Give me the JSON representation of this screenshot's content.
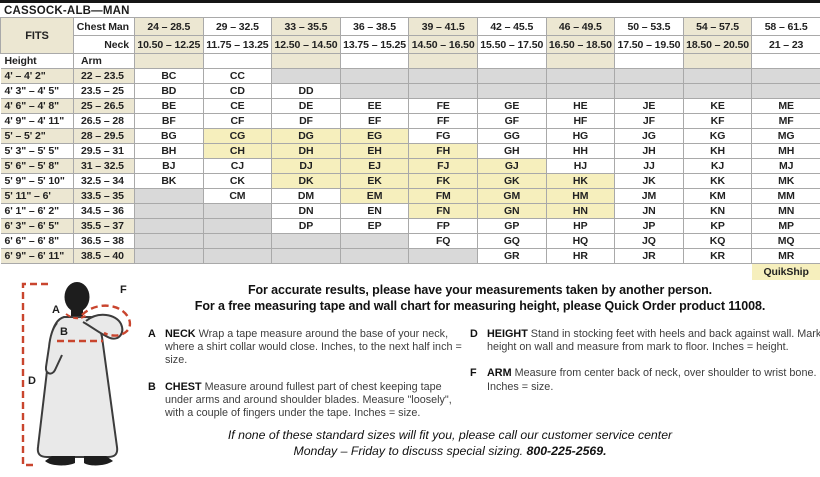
{
  "title": "CASSOCK-ALB—MAN",
  "table": {
    "fits_label": "FITS",
    "chest_label": "Chest Man",
    "neck_label": "Neck",
    "height_label": "Height",
    "arm_label": "Arm",
    "chest_ranges": [
      "24 – 28.5",
      "29 – 32.5",
      "33 – 35.5",
      "36 – 38.5",
      "39 – 41.5",
      "42 – 45.5",
      "46 – 49.5",
      "50 – 53.5",
      "54 – 57.5",
      "58 – 61.5"
    ],
    "neck_ranges": [
      "10.50 – 12.25",
      "11.75 – 13.25",
      "12.50 – 14.50",
      "13.75 – 15.25",
      "14.50 – 16.50",
      "15.50 – 17.50",
      "16.50 – 18.50",
      "17.50 – 19.50",
      "18.50 – 20.50",
      "21 – 23"
    ],
    "rows": [
      {
        "height": "4' – 4' 2\"",
        "arm": "22 – 23.5",
        "codes": [
          "BC",
          "CC",
          "",
          "",
          "",
          "",
          "",
          "",
          "",
          ""
        ]
      },
      {
        "height": "4' 3\" – 4' 5\"",
        "arm": "23.5 – 25",
        "codes": [
          "BD",
          "CD",
          "DD",
          "",
          "",
          "",
          "",
          "",
          "",
          ""
        ]
      },
      {
        "height": "4' 6\" – 4' 8\"",
        "arm": "25 – 26.5",
        "codes": [
          "BE",
          "CE",
          "DE",
          "EE",
          "FE",
          "GE",
          "HE",
          "JE",
          "KE",
          "ME"
        ]
      },
      {
        "height": "4' 9\" – 4' 11\"",
        "arm": "26.5 – 28",
        "codes": [
          "BF",
          "CF",
          "DF",
          "EF",
          "FF",
          "GF",
          "HF",
          "JF",
          "KF",
          "MF"
        ]
      },
      {
        "height": "5' – 5' 2\"",
        "arm": "28 – 29.5",
        "codes": [
          "BG",
          "CG",
          "DG",
          "EG",
          "FG",
          "GG",
          "HG",
          "JG",
          "KG",
          "MG"
        ]
      },
      {
        "height": "5' 3\" – 5' 5\"",
        "arm": "29.5 – 31",
        "codes": [
          "BH",
          "CH",
          "DH",
          "EH",
          "FH",
          "GH",
          "HH",
          "JH",
          "KH",
          "MH"
        ]
      },
      {
        "height": "5' 6\" – 5' 8\"",
        "arm": "31 – 32.5",
        "codes": [
          "BJ",
          "CJ",
          "DJ",
          "EJ",
          "FJ",
          "GJ",
          "HJ",
          "JJ",
          "KJ",
          "MJ"
        ]
      },
      {
        "height": "5' 9\" – 5' 10\"",
        "arm": "32.5 – 34",
        "codes": [
          "BK",
          "CK",
          "DK",
          "EK",
          "FK",
          "GK",
          "HK",
          "JK",
          "KK",
          "MK"
        ]
      },
      {
        "height": "5' 11\" – 6'",
        "arm": "33.5 – 35",
        "codes": [
          "",
          "CM",
          "DM",
          "EM",
          "FM",
          "GM",
          "HM",
          "JM",
          "KM",
          "MM"
        ]
      },
      {
        "height": "6' 1\" – 6' 2\"",
        "arm": "34.5 – 36",
        "codes": [
          "",
          "",
          "DN",
          "EN",
          "FN",
          "GN",
          "HN",
          "JN",
          "KN",
          "MN"
        ]
      },
      {
        "height": "6' 3\" – 6' 5\"",
        "arm": "35.5 – 37",
        "codes": [
          "",
          "",
          "DP",
          "EP",
          "FP",
          "GP",
          "HP",
          "JP",
          "KP",
          "MP"
        ]
      },
      {
        "height": "6' 6\" – 6' 8\"",
        "arm": "36.5 – 38",
        "codes": [
          "",
          "",
          "",
          "",
          "FQ",
          "GQ",
          "HQ",
          "JQ",
          "KQ",
          "MQ"
        ]
      },
      {
        "height": "6' 9\" – 6' 11\"",
        "arm": "38.5 – 40",
        "codes": [
          "",
          "",
          "",
          "",
          "",
          "GR",
          "HR",
          "JR",
          "KR",
          "MR"
        ]
      }
    ],
    "highlighted": [
      "CG",
      "CH",
      "DG",
      "DH",
      "DJ",
      "DK",
      "EG",
      "EH",
      "EJ",
      "EK",
      "EM",
      "FH",
      "FJ",
      "FK",
      "FM",
      "FN",
      "GJ",
      "GK",
      "GM",
      "GN",
      "HK",
      "HM",
      "HN"
    ],
    "quikship_label": "QuikShip"
  },
  "notes": {
    "line1": "For accurate results, please have your measurements taken by another person.",
    "line2": "For a free measuring tape and wall chart for measuring height, please Quick Order product 11008."
  },
  "instructions": [
    {
      "letter": "A",
      "term": "NECK",
      "text": "Wrap a tape measure around the base of your neck, where a shirt collar would close. Inches, to the next half inch = size."
    },
    {
      "letter": "B",
      "term": "CHEST",
      "text": "Measure around fullest part of chest keeping tape under arms and around shoulder blades. Measure \"loosely\", with a couple of fingers under the tape. Inches = size."
    },
    {
      "letter": "D",
      "term": "HEIGHT",
      "text": "Stand in stocking feet with heels and back against wall. Mark height on wall and measure from mark to floor. Inches = height."
    },
    {
      "letter": "F",
      "term": "ARM",
      "text": "Measure from center back of neck, over shoulder to wrist bone. Inches = size."
    }
  ],
  "figure": {
    "labels": {
      "a": "A",
      "b": "B",
      "d": "D",
      "f": "F"
    }
  },
  "footer": {
    "line1": "If none of these standard sizes will fit you, please call our customer service center",
    "line2": "Monday – Friday to discuss special sizing.",
    "phone": "800-225-2569."
  },
  "colors": {
    "header_beige": "#ece7d2",
    "quikship_yellow": "#f6efbd",
    "empty_gray": "#d9d9d9",
    "measure_red": "#c9452e"
  }
}
